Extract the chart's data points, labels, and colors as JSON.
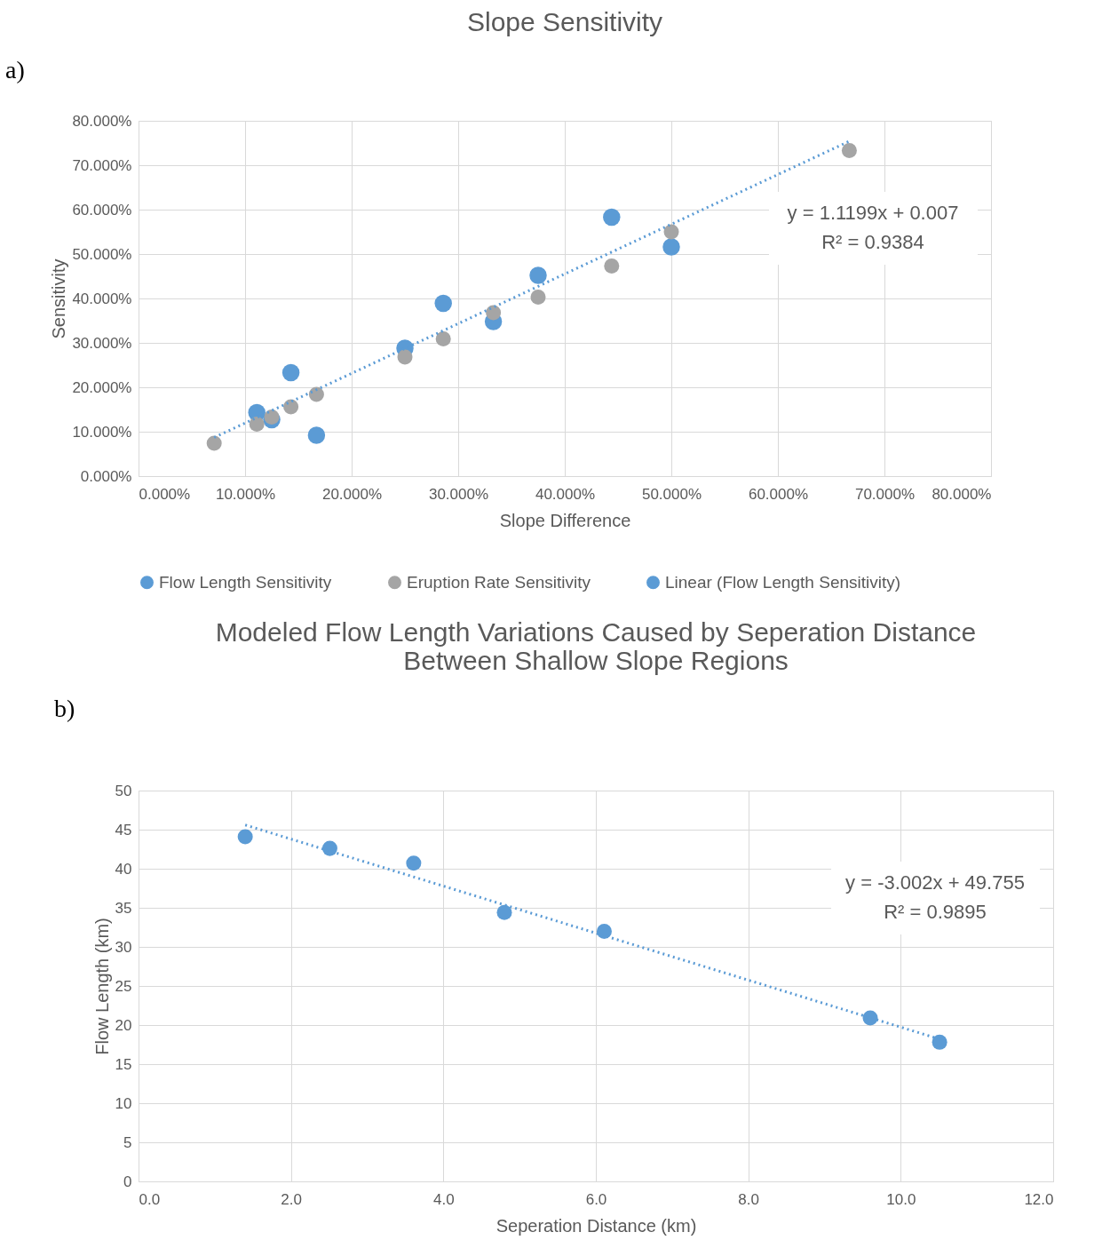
{
  "chart_data": [
    {
      "type": "scatter",
      "title": "Slope Sensitivity",
      "xlabel": "Slope Difference",
      "ylabel": "Sensitivity",
      "series": [
        {
          "name": "Flow Length Sensitivity",
          "color": "#5b9bd5",
          "marker": "circle",
          "x": [
            0.111,
            0.125,
            0.143,
            0.167,
            0.25,
            0.286,
            0.333,
            0.375,
            0.444,
            0.5
          ],
          "values": [
            0.143,
            0.127,
            0.233,
            0.092,
            0.288,
            0.389,
            0.348,
            0.452,
            0.583,
            0.516
          ]
        },
        {
          "name": "Eruption Rate Sensitivity",
          "color": "#a5a5a5",
          "marker": "circle",
          "x": [
            0.071,
            0.111,
            0.125,
            0.143,
            0.167,
            0.25,
            0.286,
            0.333,
            0.375,
            0.444,
            0.5,
            0.667
          ],
          "values": [
            0.074,
            0.117,
            0.133,
            0.156,
            0.184,
            0.268,
            0.309,
            0.368,
            0.403,
            0.473,
            0.55,
            0.733
          ]
        },
        {
          "name": "Linear (Flow Length Sensitivity)",
          "color": "#5b9bd5",
          "type": "line",
          "line_style": "dotted",
          "x": [
            0.071,
            0.667
          ],
          "values": [
            0.087,
            0.754
          ]
        }
      ],
      "xlim": [
        0,
        0.8
      ],
      "ylim": [
        0,
        0.8
      ],
      "xticks": [
        {
          "value": 0,
          "label": "0.000%"
        },
        {
          "value": 0.1,
          "label": "10.000%"
        },
        {
          "value": 0.2,
          "label": "20.000%"
        },
        {
          "value": 0.3,
          "label": "30.000%"
        },
        {
          "value": 0.4,
          "label": "40.000%"
        },
        {
          "value": 0.5,
          "label": "50.000%"
        },
        {
          "value": 0.6,
          "label": "60.000%"
        },
        {
          "value": 0.7,
          "label": "70.000%"
        },
        {
          "value": 0.8,
          "label": "80.000%"
        }
      ],
      "yticks": [
        {
          "value": 0,
          "label": "0.000%"
        },
        {
          "value": 0.1,
          "label": "10.000%"
        },
        {
          "value": 0.2,
          "label": "20.000%"
        },
        {
          "value": 0.3,
          "label": "30.000%"
        },
        {
          "value": 0.4,
          "label": "40.000%"
        },
        {
          "value": 0.5,
          "label": "50.000%"
        },
        {
          "value": 0.6,
          "label": "60.000%"
        },
        {
          "value": 0.7,
          "label": "70.000%"
        },
        {
          "value": 0.8,
          "label": "80.000%"
        }
      ],
      "grid": true,
      "legend": "bottom",
      "annotations": [
        "a)",
        "y = 1.1199x + 0.007",
        "R² = 0.9384"
      ]
    },
    {
      "type": "scatter",
      "title": "Modeled Flow Length Variations Caused by Seperation Distance Between Shallow Slope Regions",
      "xlabel": "Seperation Distance (km)",
      "ylabel": "Flow Length (km)",
      "series": [
        {
          "color": "#5b9bd5",
          "marker": "circle",
          "x": [
            1.4,
            2.51,
            3.61,
            4.8,
            6.11,
            9.6,
            10.51
          ],
          "values": [
            44.1,
            42.6,
            40.7,
            34.4,
            32.0,
            20.9,
            17.8
          ]
        },
        {
          "color": "#5b9bd5",
          "type": "line",
          "line_style": "dotted",
          "x": [
            1.4,
            10.51
          ],
          "values": [
            45.6,
            18.2
          ]
        }
      ],
      "xlim": [
        0,
        12
      ],
      "ylim": [
        0,
        50
      ],
      "xticks": [
        {
          "value": 0,
          "label": "0.0"
        },
        {
          "value": 2,
          "label": "2.0"
        },
        {
          "value": 4,
          "label": "4.0"
        },
        {
          "value": 6,
          "label": "6.0"
        },
        {
          "value": 8,
          "label": "8.0"
        },
        {
          "value": 10,
          "label": "10.0"
        },
        {
          "value": 12,
          "label": "12.0"
        }
      ],
      "yticks": [
        0,
        5,
        10,
        15,
        20,
        25,
        30,
        35,
        40,
        45,
        50
      ],
      "grid": true,
      "legend": false,
      "annotations": [
        "b)",
        "y = -3.002x + 49.755",
        "R² = 0.9895"
      ]
    }
  ]
}
